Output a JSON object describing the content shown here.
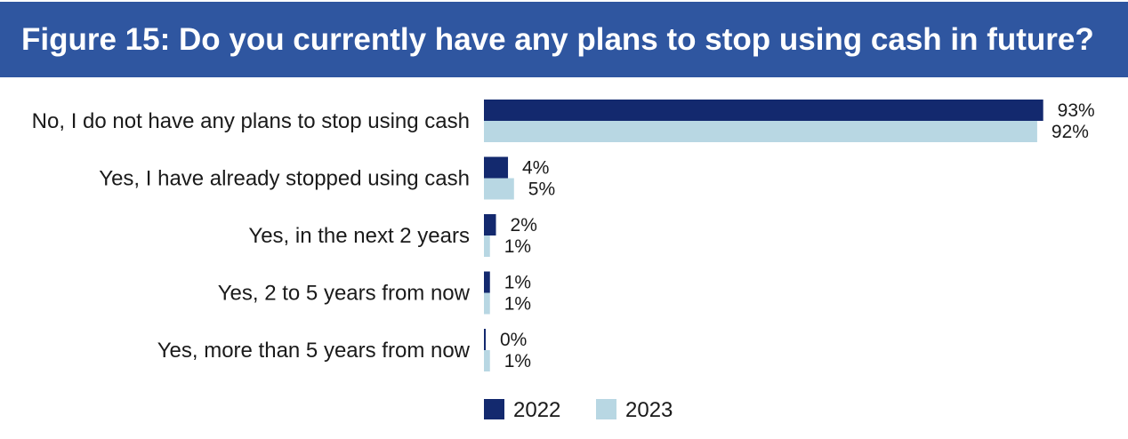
{
  "title": "Figure 15: Do you currently have any plans to stop using cash in future?",
  "colors": {
    "banner": "#2f56a0",
    "series_2022": "#13296e",
    "series_2023": "#b8d7e3"
  },
  "chart_data": {
    "type": "bar",
    "orientation": "horizontal",
    "categories": [
      "No, I do not have any plans to stop using cash",
      "Yes, I have already stopped using cash",
      "Yes, in the next 2 years",
      "Yes, 2 to 5 years from now",
      "Yes, more than 5 years from now"
    ],
    "series": [
      {
        "name": "2022",
        "values": [
          93,
          4,
          2,
          1,
          0
        ],
        "labels": [
          "93%",
          "4%",
          "2%",
          "1%",
          "0%"
        ]
      },
      {
        "name": "2023",
        "values": [
          92,
          5,
          1,
          1,
          1
        ],
        "labels": [
          "92%",
          "5%",
          "1%",
          "1%",
          "1%"
        ]
      }
    ],
    "unit": "%",
    "legend": "bottom",
    "grid": false
  }
}
